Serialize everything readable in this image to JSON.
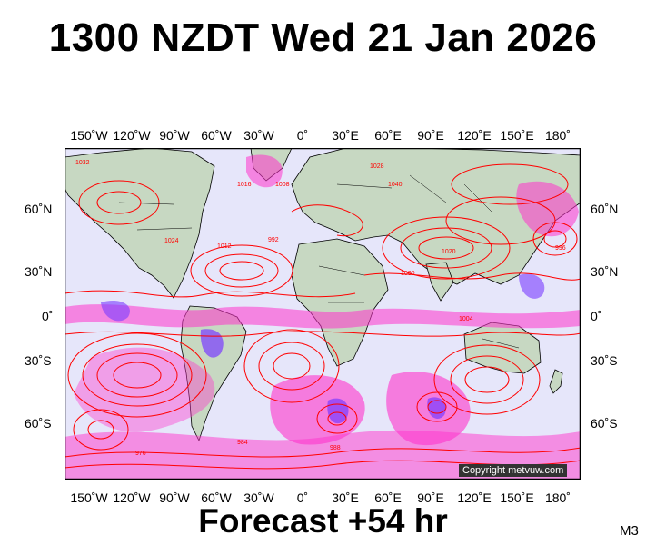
{
  "title": "1300 NZDT Wed 21 Jan 2026",
  "footer": "Forecast +54 hr",
  "model": "M3",
  "copyright": "Copyright metvuw.com",
  "lon_labels": [
    "150˚W",
    "120˚W",
    "90˚W",
    "60˚W",
    "30˚W",
    "0˚",
    "30˚E",
    "60˚E",
    "90˚E",
    "120˚E",
    "150˚E",
    "180˚"
  ],
  "lat_labels": [
    "60˚N",
    "30˚N",
    "0˚",
    "30˚S",
    "60˚S"
  ],
  "isobar_labels": [
    "1032",
    "1016",
    "1024",
    "1008",
    "1012",
    "992",
    "1000",
    "1020",
    "1004",
    "1040",
    "1028",
    "984",
    "996",
    "976",
    "988"
  ],
  "colors": {
    "ocean": "#e6e6fa",
    "land": "#c7d8c2",
    "isobar": "#ff0000",
    "rain_light": "#ff33cc",
    "rain_heavy": "#7a3cff",
    "coastline": "#000000"
  }
}
